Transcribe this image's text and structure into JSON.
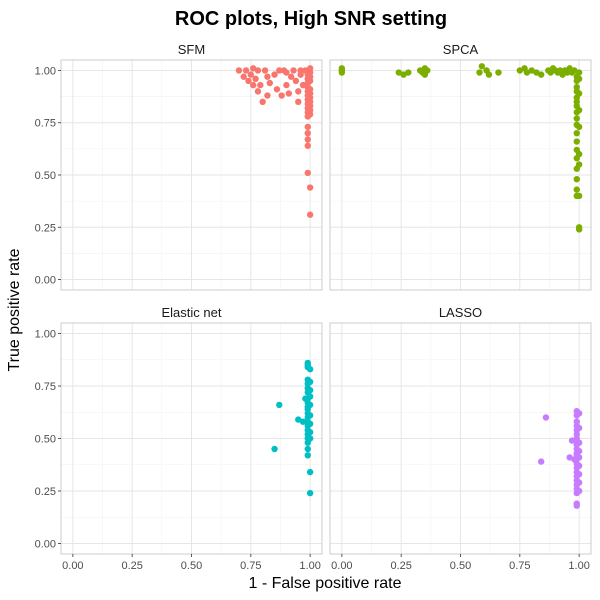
{
  "chart_data": {
    "type": "scatter",
    "title": "ROC plots, High SNR setting",
    "xlabel": "1 - False positive rate",
    "ylabel": "True positive rate",
    "xlim": [
      -0.05,
      1.05
    ],
    "ylim": [
      -0.05,
      1.05
    ],
    "x_ticks": [
      "0.00",
      "0.25",
      "0.50",
      "0.75",
      "1.00"
    ],
    "y_ticks": [
      "0.00",
      "0.25",
      "0.50",
      "0.75",
      "1.00"
    ],
    "panels": [
      {
        "name": "SFM",
        "color": "#F8766D",
        "x": [
          0.7,
          0.72,
          0.73,
          0.74,
          0.75,
          0.76,
          0.76,
          0.77,
          0.78,
          0.78,
          0.79,
          0.8,
          0.81,
          0.82,
          0.82,
          0.83,
          0.85,
          0.86,
          0.87,
          0.88,
          0.89,
          0.9,
          0.9,
          0.91,
          0.92,
          0.93,
          0.94,
          0.95,
          0.95,
          0.96,
          0.96,
          0.97,
          0.98,
          0.99,
          0.99,
          0.99,
          0.99,
          0.99,
          0.99,
          0.99,
          0.99,
          0.99,
          0.99,
          0.99,
          0.99,
          0.99,
          0.99,
          0.99,
          0.99,
          1.0,
          1.0,
          1.0,
          1.0,
          1.0,
          1.0,
          1.0,
          1.0,
          1.0,
          1.0,
          1.0,
          1.0,
          1.0
        ],
        "y": [
          1.0,
          0.97,
          1.0,
          0.95,
          0.98,
          0.93,
          1.01,
          0.96,
          0.9,
          1.0,
          0.93,
          0.85,
          1.0,
          0.97,
          0.88,
          0.94,
          0.98,
          0.91,
          1.0,
          0.88,
          1.0,
          0.93,
          0.99,
          0.89,
          0.97,
          1.0,
          0.95,
          0.9,
          0.85,
          0.98,
          1.0,
          0.93,
          1.0,
          0.98,
          0.96,
          0.94,
          0.92,
          0.9,
          0.88,
          0.86,
          0.84,
          0.82,
          0.8,
          0.78,
          0.73,
          0.7,
          0.67,
          0.64,
          0.51,
          0.44,
          0.31,
          1.01,
          0.99,
          0.97,
          0.95,
          0.91,
          0.89,
          0.87,
          0.85,
          0.83,
          0.81,
          0.79
        ]
      },
      {
        "name": "SPCA",
        "color": "#7CAE00",
        "x": [
          0.0,
          0.0,
          0.0,
          0.24,
          0.26,
          0.28,
          0.33,
          0.34,
          0.35,
          0.35,
          0.36,
          0.58,
          0.59,
          0.61,
          0.62,
          0.66,
          0.75,
          0.77,
          0.78,
          0.8,
          0.82,
          0.84,
          0.87,
          0.88,
          0.89,
          0.9,
          0.91,
          0.92,
          0.93,
          0.94,
          0.95,
          0.96,
          0.97,
          0.98,
          0.99,
          0.99,
          0.99,
          0.99,
          0.99,
          0.99,
          0.99,
          0.99,
          0.99,
          0.99,
          0.99,
          0.99,
          0.99,
          0.99,
          0.99,
          0.99,
          0.99,
          0.99,
          1.0,
          1.0,
          1.0,
          1.0,
          1.0,
          1.0,
          1.0,
          1.0,
          1.0,
          1.0
        ],
        "y": [
          1.0,
          0.99,
          1.01,
          0.99,
          0.98,
          0.99,
          1.0,
          0.99,
          1.01,
          0.98,
          1.0,
          0.99,
          1.02,
          1.0,
          0.98,
          0.99,
          1.0,
          1.01,
          0.99,
          1.0,
          0.99,
          0.98,
          1.0,
          0.99,
          1.01,
          1.0,
          0.99,
          1.0,
          0.98,
          1.0,
          0.99,
          1.01,
          0.99,
          1.0,
          0.97,
          0.95,
          0.92,
          0.9,
          0.87,
          0.85,
          0.83,
          0.8,
          0.77,
          0.74,
          0.7,
          0.66,
          0.62,
          0.58,
          0.53,
          0.48,
          0.43,
          0.4,
          0.99,
          0.96,
          0.89,
          0.81,
          0.73,
          0.6,
          0.55,
          0.4,
          0.25,
          0.24
        ]
      },
      {
        "name": "Elastic net",
        "color": "#00BFC4",
        "x": [
          0.85,
          0.87,
          0.95,
          0.97,
          0.98,
          0.99,
          0.99,
          0.99,
          0.99,
          0.99,
          0.99,
          0.99,
          0.99,
          0.99,
          0.99,
          0.99,
          0.99,
          0.99,
          0.99,
          0.99,
          0.99,
          0.99,
          0.99,
          0.99,
          0.99,
          0.99,
          1.0,
          1.0,
          1.0,
          1.0,
          1.0,
          1.0,
          1.0,
          1.0,
          1.0,
          1.0,
          1.0
        ],
        "y": [
          0.45,
          0.66,
          0.59,
          0.58,
          0.69,
          0.86,
          0.85,
          0.84,
          0.78,
          0.76,
          0.74,
          0.72,
          0.69,
          0.67,
          0.65,
          0.64,
          0.62,
          0.6,
          0.58,
          0.56,
          0.54,
          0.52,
          0.5,
          0.48,
          0.45,
          0.42,
          0.83,
          0.77,
          0.73,
          0.7,
          0.66,
          0.61,
          0.57,
          0.53,
          0.5,
          0.34,
          0.24
        ]
      },
      {
        "name": "LASSO",
        "color": "#C77CFF",
        "x": [
          0.84,
          0.86,
          0.96,
          0.97,
          0.98,
          0.99,
          0.99,
          0.99,
          0.99,
          0.99,
          0.99,
          0.99,
          0.99,
          0.99,
          0.99,
          0.99,
          0.99,
          0.99,
          0.99,
          0.99,
          0.99,
          0.99,
          0.99,
          0.99,
          0.99,
          0.99,
          0.99,
          0.99,
          1.0,
          1.0,
          1.0,
          1.0,
          1.0,
          1.0,
          1.0,
          1.0,
          1.0
        ],
        "y": [
          0.39,
          0.6,
          0.41,
          0.49,
          0.4,
          0.63,
          0.61,
          0.58,
          0.56,
          0.54,
          0.52,
          0.5,
          0.49,
          0.47,
          0.45,
          0.43,
          0.42,
          0.4,
          0.38,
          0.36,
          0.34,
          0.32,
          0.3,
          0.28,
          0.26,
          0.24,
          0.19,
          0.18,
          0.62,
          0.55,
          0.48,
          0.44,
          0.41,
          0.37,
          0.33,
          0.29,
          0.25
        ]
      }
    ]
  }
}
